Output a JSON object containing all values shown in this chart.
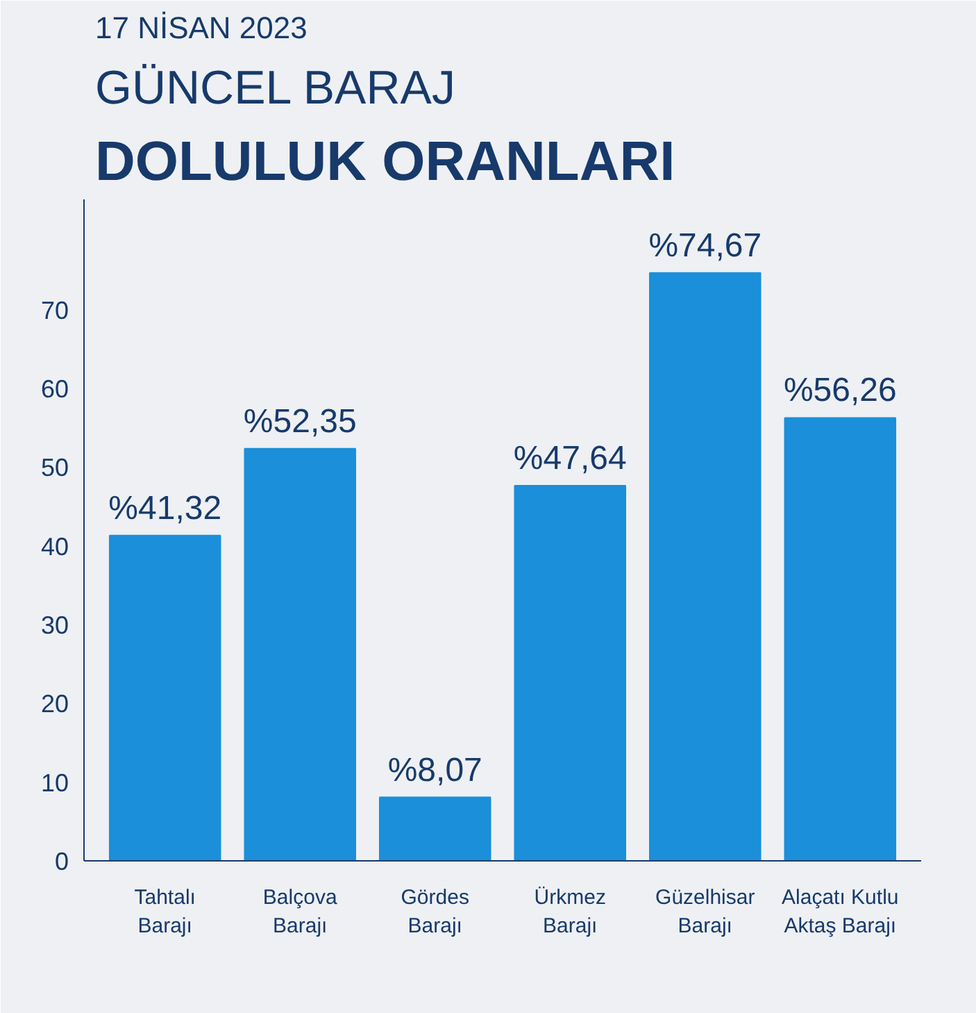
{
  "chart_data": {
    "type": "bar",
    "annotations": [
      "17 NİSAN 2023"
    ],
    "title": "GÜNCEL BARAJ",
    "subtitle": "DOLULUK ORANLARI",
    "categories": [
      "Tahtalı\nBarajı",
      "Balçova\nBarajı",
      "Gördes\nBarajı",
      "Ürkmez\nBarajı",
      "Güzelhisar\nBarajı",
      "Alaçatı Kutlu\nAktaş Barajı"
    ],
    "values": [
      41.32,
      52.35,
      8.07,
      47.64,
      74.67,
      56.26
    ],
    "value_labels": [
      "%41,32",
      "%52,35",
      "%8,07",
      "%47,64",
      "%74,67",
      "%56,26"
    ],
    "color": "#1b8fd9",
    "ylim": [
      0,
      84
    ],
    "yticks": [
      0,
      10,
      20,
      30,
      40,
      50,
      60,
      70
    ],
    "grid": false
  }
}
